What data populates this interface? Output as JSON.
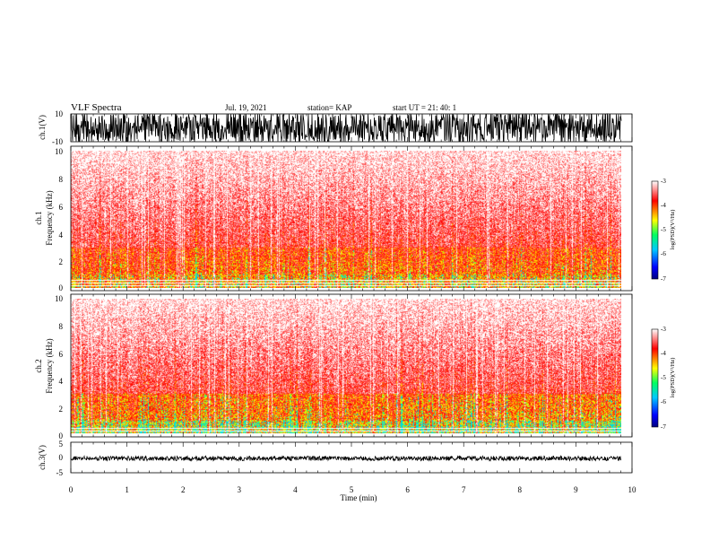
{
  "header": {
    "title": "VLF Spectra",
    "date": "Jul. 19, 2021",
    "station": "station= KAP",
    "start": "start UT =  21: 40: 1"
  },
  "chart_data": [
    {
      "panel": "ch1_waveform",
      "type": "line",
      "ylabel": "ch.1(V)",
      "ylim": [
        -10,
        10
      ],
      "yticks": [
        "10",
        "-10"
      ],
      "xlim": [
        0,
        10
      ],
      "note_visual": "dense black noise trace filling range"
    },
    {
      "panel": "ch1_spectrogram",
      "type": "heatmap",
      "ylabel": "ch.1",
      "ylabel2": "Frequency (kHz)",
      "ylim": [
        0,
        10
      ],
      "yticks": [
        "0",
        "2",
        "4",
        "6",
        "8",
        "10"
      ],
      "xlim": [
        0,
        10
      ],
      "colorbar": {
        "label": "log(PSD)(V²/Hz)",
        "range": [
          -7,
          -3
        ],
        "ticks": [
          "-3",
          "-4",
          "-5",
          "-6",
          "-7"
        ]
      }
    },
    {
      "panel": "ch2_spectrogram",
      "type": "heatmap",
      "ylabel": "ch.2",
      "ylabel2": "Frequency (kHz)",
      "ylim": [
        0,
        10
      ],
      "yticks": [
        "0",
        "2",
        "4",
        "6",
        "8",
        "10"
      ],
      "xlim": [
        0,
        10
      ],
      "colorbar": {
        "label": "log(PSD)(V²/Hz)",
        "range": [
          -7,
          -3
        ],
        "ticks": [
          "-3",
          "-4",
          "-5",
          "-6",
          "-7"
        ]
      }
    },
    {
      "panel": "ch3_waveform",
      "type": "line",
      "ylabel": "ch.3(V)",
      "ylim": [
        -5,
        5
      ],
      "yticks": [
        "5",
        "0",
        "-5"
      ],
      "xlim": [
        0,
        10
      ],
      "xlabel": "Time (min)",
      "xticks": [
        "0",
        "1",
        "2",
        "3",
        "4",
        "5",
        "6",
        "7",
        "8",
        "9",
        "10"
      ]
    }
  ],
  "colors": {
    "axis": "#000000",
    "trace": "#000000",
    "background": "#ffffff",
    "colormap": [
      "#00007f",
      "#0000ff",
      "#00c8ff",
      "#00ff60",
      "#ffff00",
      "#ff8000",
      "#ff0000",
      "#ffffff"
    ]
  }
}
